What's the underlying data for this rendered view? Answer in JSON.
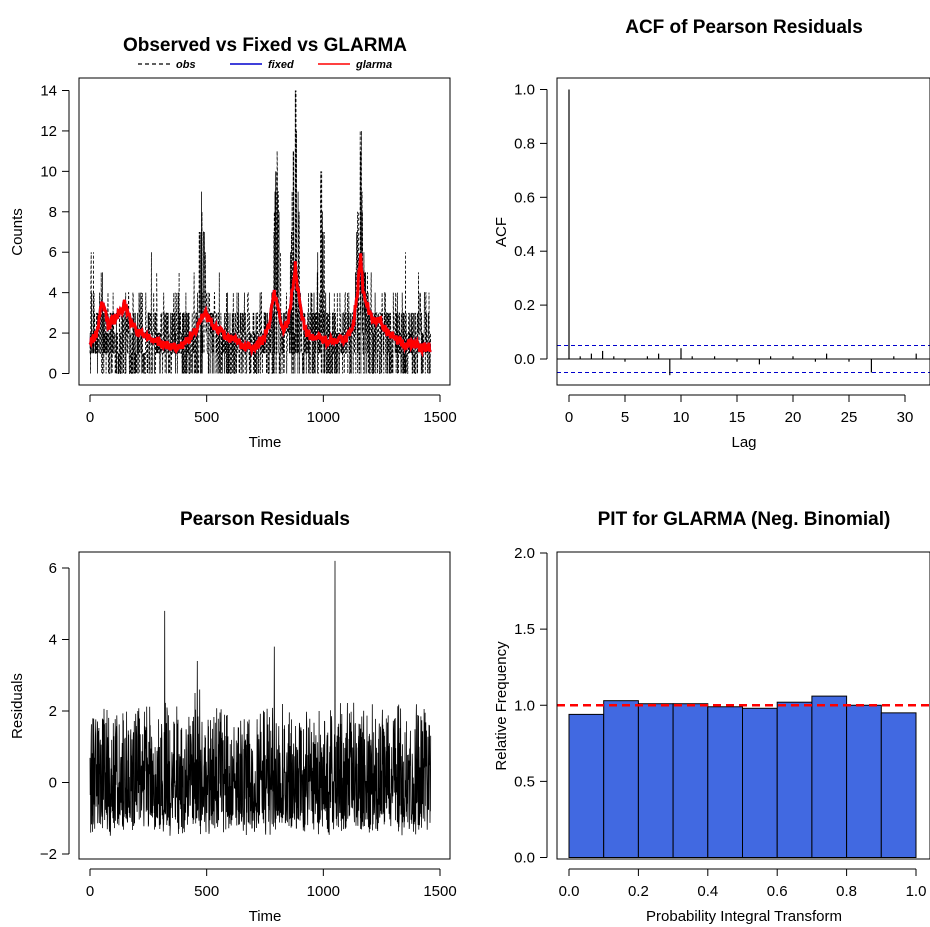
{
  "panels": {
    "p1": {
      "title": "Observed vs Fixed vs GLARMA",
      "xlabel": "Time",
      "ylabel": "Counts",
      "xticks": [
        "0",
        "500",
        "1000",
        "1500"
      ],
      "yticks": [
        "0",
        "2",
        "4",
        "6",
        "8",
        "10",
        "12",
        "14"
      ],
      "legend": [
        "obs",
        "fixed",
        "glarma"
      ]
    },
    "p2": {
      "title": "ACF of Pearson Residuals",
      "xlabel": "Lag",
      "ylabel": "ACF",
      "xticks": [
        "0",
        "5",
        "10",
        "15",
        "20",
        "25",
        "30"
      ],
      "yticks": [
        "0.0",
        "0.2",
        "0.4",
        "0.6",
        "0.8",
        "1.0"
      ]
    },
    "p3": {
      "title": "Pearson Residuals",
      "xlabel": "Time",
      "ylabel": "Residuals",
      "xticks": [
        "0",
        "500",
        "1000",
        "1500"
      ],
      "yticks": [
        "−2",
        "0",
        "2",
        "4",
        "6"
      ]
    },
    "p4": {
      "title": "PIT for GLARMA (Neg. Binomial)",
      "xlabel": "Probability Integral Transform",
      "ylabel": "Relative Frequency",
      "xticks": [
        "0.0",
        "0.2",
        "0.4",
        "0.6",
        "0.8",
        "1.0"
      ],
      "yticks": [
        "0.0",
        "0.5",
        "1.0",
        "1.5",
        "2.0"
      ]
    }
  },
  "colors": {
    "obs": "#000000",
    "fixed": "#0000cd",
    "glarma": "#ff0000",
    "acf_ci": "#0000cd",
    "pit_bar": "#4169e1",
    "pit_ref": "#ff0000"
  },
  "chart_data": [
    {
      "type": "line",
      "title": "Observed vs Fixed vs GLARMA",
      "xlabel": "Time",
      "ylabel": "Counts",
      "xlim": [
        0,
        1500
      ],
      "ylim": [
        0,
        14
      ],
      "n": 1461,
      "series": [
        {
          "name": "obs",
          "style": "dashed",
          "color": "#000000",
          "peaks": [
            [
              480,
              8
            ],
            [
              800,
              10
            ],
            [
              880,
              14
            ],
            [
              990,
              9
            ],
            [
              1160,
              11
            ]
          ],
          "typical_range": [
            0,
            5
          ]
        },
        {
          "name": "fixed",
          "style": "solid",
          "color": "#0000cd"
        },
        {
          "name": "glarma",
          "style": "solid",
          "color": "#ff0000",
          "x": [
            0,
            30,
            50,
            80,
            100,
            130,
            150,
            180,
            210,
            250,
            300,
            350,
            400,
            440,
            470,
            490,
            510,
            540,
            580,
            620,
            660,
            700,
            740,
            770,
            790,
            810,
            830,
            850,
            870,
            880,
            890,
            910,
            930,
            960,
            990,
            1020,
            1060,
            1100,
            1130,
            1150,
            1160,
            1170,
            1190,
            1210,
            1240,
            1270,
            1300,
            1340,
            1380,
            1420,
            1460
          ],
          "y": [
            1.5,
            2.0,
            3.5,
            2.4,
            2.6,
            3.0,
            3.5,
            2.4,
            2.0,
            1.8,
            1.5,
            1.3,
            1.4,
            2.0,
            2.5,
            3.0,
            2.7,
            2.2,
            1.9,
            1.6,
            1.4,
            1.3,
            1.6,
            2.5,
            4.0,
            3.0,
            2.2,
            2.6,
            4.4,
            5.5,
            4.2,
            2.6,
            2.0,
            1.8,
            1.7,
            1.6,
            1.6,
            1.7,
            2.5,
            4.5,
            5.8,
            4.0,
            3.3,
            2.6,
            2.8,
            2.1,
            1.8,
            1.5,
            1.4,
            1.3,
            1.3
          ]
        }
      ]
    },
    {
      "type": "bar",
      "title": "ACF of Pearson Residuals",
      "xlabel": "Lag",
      "ylabel": "ACF",
      "xlim": [
        -1,
        32
      ],
      "ylim": [
        -0.08,
        1.0
      ],
      "lags": [
        0,
        1,
        2,
        3,
        4,
        5,
        6,
        7,
        8,
        9,
        10,
        11,
        12,
        13,
        14,
        15,
        16,
        17,
        18,
        19,
        20,
        21,
        22,
        23,
        24,
        25,
        26,
        27,
        28,
        29,
        30,
        31
      ],
      "values": [
        1.0,
        0.01,
        0.02,
        0.03,
        0.01,
        -0.01,
        0.0,
        0.01,
        0.02,
        -0.06,
        0.04,
        0.01,
        0.0,
        0.01,
        0.0,
        -0.01,
        0.0,
        -0.02,
        0.01,
        0.0,
        0.01,
        0.0,
        -0.01,
        0.02,
        0.0,
        -0.01,
        0.0,
        -0.05,
        0.0,
        0.01,
        0.0,
        0.02
      ],
      "ci": 0.05
    },
    {
      "type": "line",
      "title": "Pearson Residuals",
      "xlabel": "Time",
      "ylabel": "Residuals",
      "xlim": [
        0,
        1500
      ],
      "ylim": [
        -2,
        6.2
      ],
      "n": 1461,
      "peaks": [
        [
          320,
          4.8
        ],
        [
          460,
          3.4
        ],
        [
          790,
          3.8
        ],
        [
          1050,
          6.2
        ]
      ],
      "typical_range": [
        -1.5,
        2.5
      ]
    },
    {
      "type": "bar",
      "title": "PIT for GLARMA (Neg. Binomial)",
      "xlabel": "Probability Integral Transform",
      "ylabel": "Relative Frequency",
      "xlim": [
        0,
        1
      ],
      "ylim": [
        0,
        2
      ],
      "bins": [
        [
          0.0,
          0.1
        ],
        [
          0.1,
          0.2
        ],
        [
          0.2,
          0.3
        ],
        [
          0.3,
          0.4
        ],
        [
          0.4,
          0.5
        ],
        [
          0.5,
          0.6
        ],
        [
          0.6,
          0.7
        ],
        [
          0.7,
          0.8
        ],
        [
          0.8,
          0.9
        ],
        [
          0.9,
          1.0
        ]
      ],
      "values": [
        0.94,
        1.03,
        1.01,
        1.01,
        0.99,
        0.98,
        1.02,
        1.06,
        1.0,
        0.95
      ],
      "reference_line": 1.0
    }
  ]
}
